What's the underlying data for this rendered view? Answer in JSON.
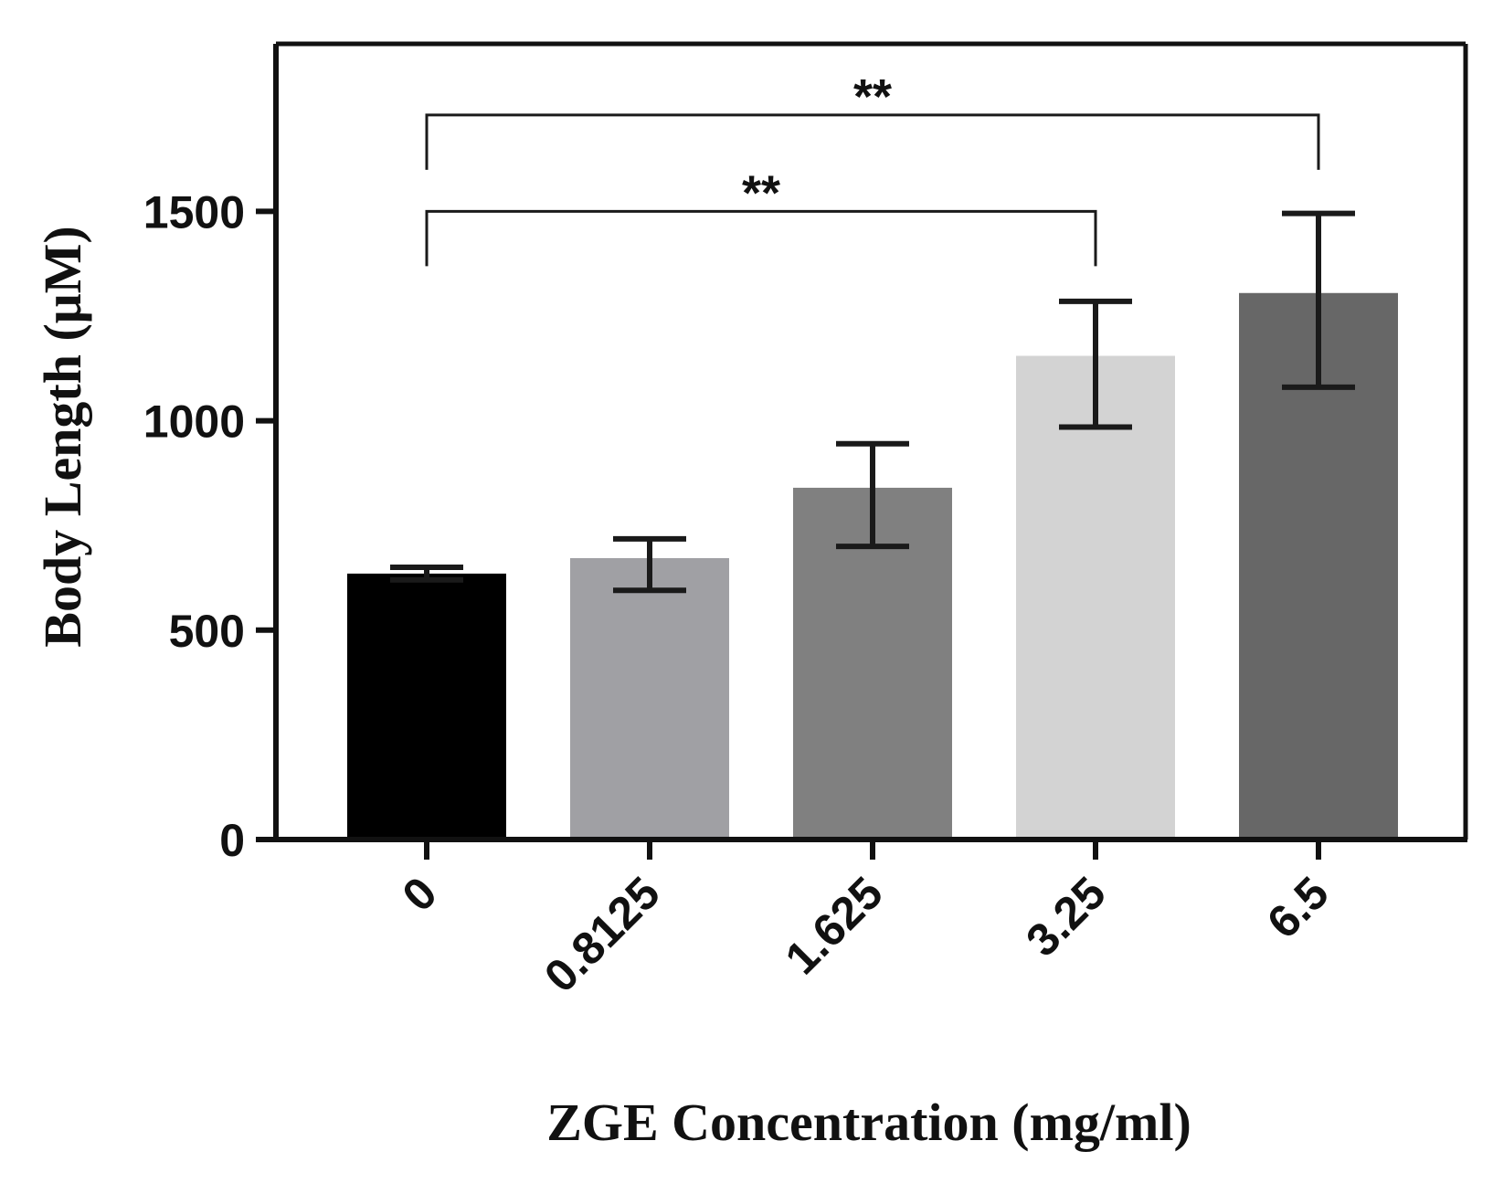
{
  "chart_data": {
    "type": "bar",
    "xlabel": "ZGE Concentration (mg/ml)",
    "ylabel": "Body Length (μM)",
    "ylim": [
      0,
      1900
    ],
    "yticks": [
      0,
      500,
      1000,
      1500
    ],
    "yticks_text": [
      "0",
      "500",
      "1000",
      "1500"
    ],
    "categories": [
      "0",
      "0.8125",
      "1.625",
      "3.25",
      "6.5"
    ],
    "values": [
      635,
      672,
      840,
      1155,
      1305
    ],
    "error_upper": [
      650,
      718,
      945,
      1285,
      1495
    ],
    "error_lower": [
      620,
      595,
      700,
      985,
      1080
    ],
    "bar_colors": [
      "#000000",
      "#a0a0a4",
      "#808080",
      "#d3d3d3",
      "#676767"
    ],
    "grid": false,
    "legend": "none",
    "significance": [
      {
        "from": 0,
        "to": 3,
        "label": "**",
        "level": 1500
      },
      {
        "from": 0,
        "to": 4,
        "label": "**",
        "level": 1730
      }
    ]
  }
}
